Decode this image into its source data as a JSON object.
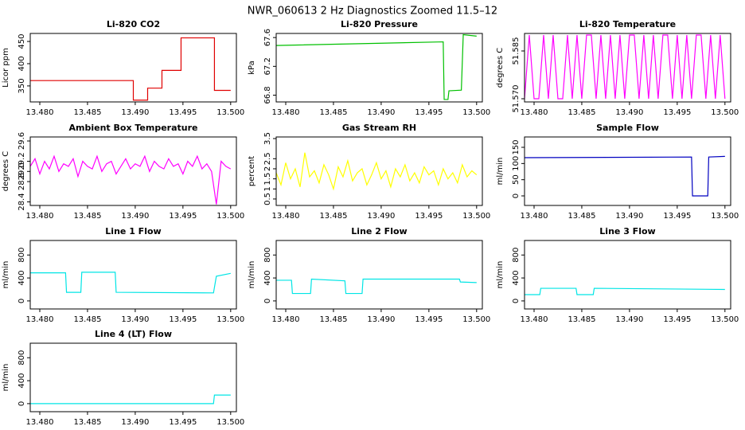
{
  "title": "NWR_060613  2 Hz Diagnostics Zoomed 11.5–12",
  "chart_data": [
    {
      "type": "line",
      "title": "Li-820 CO2",
      "ylabel": "Licor ppm",
      "color": "#e00000",
      "x": [
        13.479,
        13.4898,
        13.4898,
        13.4913,
        13.4913,
        13.4928,
        13.4928,
        13.4948,
        13.4948,
        13.4983,
        13.4983,
        13.5
      ],
      "values": [
        362,
        362,
        318,
        318,
        345,
        345,
        385,
        385,
        458,
        458,
        340,
        340
      ],
      "xlim": [
        13.479,
        13.5006
      ],
      "ylim": [
        314,
        468
      ],
      "xticks": [
        {
          "value": 13.48,
          "label": "13.480"
        },
        {
          "value": 13.485,
          "label": "13.485"
        },
        {
          "value": 13.49,
          "label": "13.490"
        },
        {
          "value": 13.495,
          "label": "13.495"
        },
        {
          "value": 13.5,
          "label": "13.500"
        }
      ],
      "yticks": [
        350,
        400,
        450
      ]
    },
    {
      "type": "line",
      "title": "Li-820 Pressure",
      "ylabel": "kPa",
      "color": "#00c000",
      "x": [
        13.479,
        13.4965,
        13.4966,
        13.497,
        13.4971,
        13.4984,
        13.4986,
        13.5
      ],
      "values": [
        67.49,
        67.54,
        66.74,
        66.74,
        66.86,
        66.87,
        67.64,
        67.62
      ],
      "xlim": [
        13.479,
        13.5006
      ],
      "ylim": [
        66.706,
        67.657
      ],
      "xticks": [
        {
          "value": 13.48,
          "label": "13.480"
        },
        {
          "value": 13.485,
          "label": "13.485"
        },
        {
          "value": 13.49,
          "label": "13.490"
        },
        {
          "value": 13.495,
          "label": "13.495"
        },
        {
          "value": 13.5,
          "label": "13.500"
        }
      ],
      "yticks": [
        66.8,
        67.2,
        67.6
      ]
    },
    {
      "type": "line",
      "title": "Li-820 Temperature",
      "ylabel": "degrees C",
      "color": "#ff00ff",
      "x": [
        13.479,
        13.4795,
        13.48,
        13.4805,
        13.481,
        13.4815,
        13.482,
        13.4825,
        13.483,
        13.4835,
        13.484,
        13.4845,
        13.485,
        13.4855,
        13.486,
        13.4865,
        13.487,
        13.4875,
        13.488,
        13.4885,
        13.489,
        13.4895,
        13.49,
        13.4905,
        13.491,
        13.4915,
        13.492,
        13.4925,
        13.493,
        13.4935,
        13.494,
        13.4945,
        13.495,
        13.4955,
        13.496,
        13.4965,
        13.497,
        13.4975,
        13.498,
        13.4985,
        13.499,
        13.4995,
        13.5
      ],
      "values": [
        51.57,
        51.59,
        51.57,
        51.57,
        51.59,
        51.57,
        51.59,
        51.57,
        51.57,
        51.59,
        51.57,
        51.59,
        51.57,
        51.59,
        51.59,
        51.57,
        51.59,
        51.57,
        51.59,
        51.57,
        51.59,
        51.57,
        51.59,
        51.59,
        51.57,
        51.59,
        51.57,
        51.59,
        51.57,
        51.59,
        51.59,
        51.57,
        51.59,
        51.57,
        51.59,
        51.57,
        51.59,
        51.59,
        51.57,
        51.59,
        51.57,
        51.59,
        51.57
      ],
      "xlim": [
        13.479,
        13.5006
      ],
      "ylim": [
        51.569,
        51.5905
      ],
      "xticks": [
        {
          "value": 13.48,
          "label": "13.480"
        },
        {
          "value": 13.485,
          "label": "13.485"
        },
        {
          "value": 13.49,
          "label": "13.490"
        },
        {
          "value": 13.495,
          "label": "13.495"
        },
        {
          "value": 13.5,
          "label": "13.500"
        }
      ],
      "yticks": [
        {
          "value": 51.57,
          "label": "51.570"
        },
        51.585
      ]
    },
    {
      "type": "line",
      "title": "Ambient Box Temperature",
      "ylabel": "degrees C",
      "color": "#ff00ff",
      "x": [
        13.479,
        13.4795,
        13.48,
        13.4805,
        13.481,
        13.4815,
        13.482,
        13.4825,
        13.483,
        13.4835,
        13.484,
        13.4845,
        13.485,
        13.4855,
        13.486,
        13.4865,
        13.487,
        13.4875,
        13.488,
        13.4885,
        13.489,
        13.4895,
        13.49,
        13.4905,
        13.491,
        13.4915,
        13.492,
        13.4925,
        13.493,
        13.4935,
        13.494,
        13.4945,
        13.495,
        13.4955,
        13.496,
        13.4965,
        13.497,
        13.4975,
        13.498,
        13.4985,
        13.499,
        13.4995,
        13.5
      ],
      "values": [
        29.1,
        29.25,
        28.95,
        29.2,
        29.05,
        29.3,
        29,
        29.15,
        29.1,
        29.25,
        28.9,
        29.2,
        29.1,
        29.05,
        29.3,
        29,
        29.15,
        29.2,
        28.95,
        29.1,
        29.25,
        29.05,
        29.15,
        29.1,
        29.3,
        29,
        29.2,
        29.1,
        29.05,
        29.25,
        29.1,
        29.15,
        28.95,
        29.2,
        29.1,
        29.3,
        29.05,
        29.15,
        29,
        28.35,
        29.2,
        29.1,
        29.05
      ],
      "xlim": [
        13.479,
        13.5006
      ],
      "ylim": [
        28.33,
        29.679
      ],
      "xticks": [
        {
          "value": 13.48,
          "label": "13.480"
        },
        {
          "value": 13.485,
          "label": "13.485"
        },
        {
          "value": 13.49,
          "label": "13.490"
        },
        {
          "value": 13.495,
          "label": "13.495"
        },
        {
          "value": 13.5,
          "label": "13.500"
        }
      ],
      "yticks": [
        28.4,
        28.8,
        {
          "value": 29,
          "label": "29.0"
        },
        29.2,
        29.6
      ]
    },
    {
      "type": "line",
      "title": "Gas Stream RH",
      "ylabel": "percent",
      "color": "#ffff00",
      "x": [
        13.479,
        13.4795,
        13.48,
        13.4805,
        13.481,
        13.4815,
        13.482,
        13.4825,
        13.483,
        13.4835,
        13.484,
        13.4845,
        13.485,
        13.4855,
        13.486,
        13.4865,
        13.487,
        13.4875,
        13.488,
        13.4885,
        13.489,
        13.4895,
        13.49,
        13.4905,
        13.491,
        13.4915,
        13.492,
        13.4925,
        13.493,
        13.4935,
        13.494,
        13.4945,
        13.495,
        13.4955,
        13.496,
        13.4965,
        13.497,
        13.4975,
        13.498,
        13.4985,
        13.499,
        13.4995,
        13.5
      ],
      "values": [
        1.8,
        1.2,
        2.3,
        1.5,
        2.0,
        1.1,
        2.8,
        1.6,
        1.9,
        1.3,
        2.2,
        1.7,
        1.0,
        2.1,
        1.6,
        2.4,
        1.4,
        1.8,
        2.0,
        1.2,
        1.7,
        2.3,
        1.5,
        1.9,
        1.1,
        2.0,
        1.6,
        2.2,
        1.4,
        1.8,
        1.3,
        2.1,
        1.7,
        1.9,
        1.2,
        2.0,
        1.5,
        1.8,
        1.3,
        2.2,
        1.6,
        1.9,
        1.7
      ],
      "xlim": [
        13.479,
        13.5006
      ],
      "ylim": [
        0.18,
        3.58
      ],
      "xticks": [
        {
          "value": 13.48,
          "label": "13.480"
        },
        {
          "value": 13.485,
          "label": "13.485"
        },
        {
          "value": 13.49,
          "label": "13.490"
        },
        {
          "value": 13.495,
          "label": "13.495"
        },
        {
          "value": 13.5,
          "label": "13.500"
        }
      ],
      "yticks": [
        0.5,
        1,
        1.5,
        2,
        2.5,
        3.5
      ]
    },
    {
      "type": "line",
      "title": "Sample Flow",
      "ylabel": "ml/min",
      "color": "#0000c0",
      "x": [
        13.479,
        13.4965,
        13.4966,
        13.4982,
        13.4983,
        13.5
      ],
      "values": [
        118,
        120,
        0,
        0,
        120,
        122
      ],
      "xlim": [
        13.479,
        13.5006
      ],
      "ylim": [
        -29.5,
        182
      ],
      "xticks": [
        {
          "value": 13.48,
          "label": "13.480"
        },
        {
          "value": 13.485,
          "label": "13.485"
        },
        {
          "value": 13.49,
          "label": "13.490"
        },
        {
          "value": 13.495,
          "label": "13.495"
        },
        {
          "value": 13.5,
          "label": "13.500"
        }
      ],
      "yticks": [
        0,
        50,
        100,
        150
      ]
    },
    {
      "type": "line",
      "title": "Line 1 Flow",
      "ylabel": "ml/min",
      "color": "#00e5e5",
      "x": [
        13.479,
        13.4827,
        13.4828,
        13.4843,
        13.4844,
        13.4879,
        13.488,
        13.4982,
        13.4985,
        13.5
      ],
      "values": [
        490,
        490,
        150,
        150,
        500,
        500,
        150,
        140,
        430,
        480
      ],
      "xlim": [
        13.479,
        13.5006
      ],
      "ylim": [
        -140,
        1053
      ],
      "xticks": [
        {
          "value": 13.48,
          "label": "13.480"
        },
        {
          "value": 13.485,
          "label": "13.485"
        },
        {
          "value": 13.49,
          "label": "13.490"
        },
        {
          "value": 13.495,
          "label": "13.495"
        },
        {
          "value": 13.5,
          "label": "13.500"
        }
      ],
      "yticks": [
        0,
        400,
        800
      ]
    },
    {
      "type": "line",
      "title": "Line 2 Flow",
      "ylabel": "ml/min",
      "color": "#00e5e5",
      "x": [
        13.479,
        13.4806,
        13.4807,
        13.4826,
        13.4827,
        13.4862,
        13.4863,
        13.488,
        13.4881,
        13.4982,
        13.4983,
        13.5
      ],
      "values": [
        360,
        360,
        130,
        130,
        380,
        350,
        130,
        130,
        380,
        380,
        330,
        320
      ],
      "xlim": [
        13.479,
        13.5006
      ],
      "ylim": [
        -140,
        1053
      ],
      "xticks": [
        {
          "value": 13.48,
          "label": "13.480"
        },
        {
          "value": 13.485,
          "label": "13.485"
        },
        {
          "value": 13.49,
          "label": "13.490"
        },
        {
          "value": 13.495,
          "label": "13.495"
        },
        {
          "value": 13.5,
          "label": "13.500"
        }
      ],
      "yticks": [
        0,
        400,
        800
      ]
    },
    {
      "type": "line",
      "title": "Line 3 Flow",
      "ylabel": "ml/min",
      "color": "#00e5e5",
      "x": [
        13.479,
        13.4806,
        13.4807,
        13.4844,
        13.4845,
        13.4862,
        13.4863,
        13.5
      ],
      "values": [
        110,
        110,
        220,
        220,
        110,
        110,
        220,
        200
      ],
      "xlim": [
        13.479,
        13.5006
      ],
      "ylim": [
        -140,
        1053
      ],
      "xticks": [
        {
          "value": 13.48,
          "label": "13.480"
        },
        {
          "value": 13.485,
          "label": "13.485"
        },
        {
          "value": 13.49,
          "label": "13.490"
        },
        {
          "value": 13.495,
          "label": "13.495"
        },
        {
          "value": 13.5,
          "label": "13.500"
        }
      ],
      "yticks": [
        0,
        400,
        800
      ]
    },
    {
      "type": "line",
      "title": "Line 4 (LT) Flow",
      "ylabel": "ml/min",
      "color": "#00e5e5",
      "x": [
        13.479,
        13.4982,
        13.4983,
        13.5
      ],
      "values": [
        0,
        0,
        150,
        150
      ],
      "xlim": [
        13.479,
        13.5006
      ],
      "ylim": [
        -140,
        1053
      ],
      "xticks": [
        {
          "value": 13.48,
          "label": "13.480"
        },
        {
          "value": 13.485,
          "label": "13.485"
        },
        {
          "value": 13.49,
          "label": "13.490"
        },
        {
          "value": 13.495,
          "label": "13.495"
        },
        {
          "value": 13.5,
          "label": "13.500"
        }
      ],
      "yticks": [
        0,
        400,
        800
      ]
    }
  ]
}
